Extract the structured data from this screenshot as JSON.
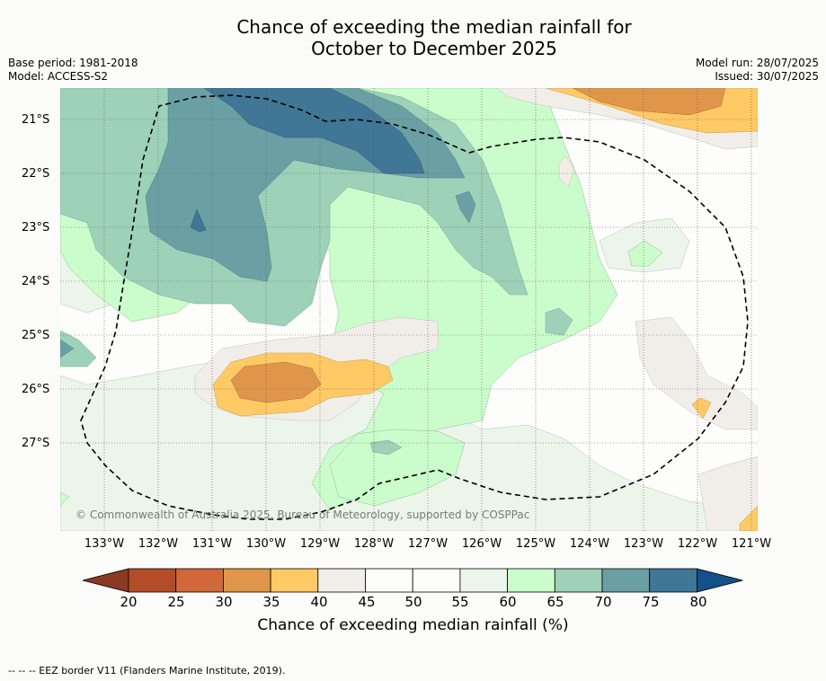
{
  "title_line1": "Chance of exceeding the median rainfall for",
  "title_line2": "October to December 2025",
  "base_period": "Base period: 1981-2018",
  "model": "Model: ACCESS-S2",
  "model_run": "Model run: 28/07/2025",
  "issued": "Issued: 30/07/2025",
  "copyright": "© Commonwealth of Australia 2025, Bureau of Meteorology, supported by COSPPac",
  "lat_labels": [
    "21°S",
    "22°S",
    "23°S",
    "24°S",
    "25°S",
    "26°S",
    "27°S"
  ],
  "lon_labels": [
    "133°W",
    "132°W",
    "131°W",
    "130°W",
    "129°W",
    "128°W",
    "127°W",
    "126°W",
    "125°W",
    "124°W",
    "123°W",
    "122°W",
    "121°W"
  ],
  "colorbar": {
    "ticks": [
      "20",
      "25",
      "30",
      "35",
      "40",
      "45",
      "50",
      "55",
      "60",
      "65",
      "70",
      "75",
      "80"
    ],
    "label": "Chance of exceeding median rainfall (%)",
    "colors": [
      "#8a3a22",
      "#b34d28",
      "#d0683a",
      "#e0964a",
      "#ffc965",
      "#f1ede8",
      "#fdfdfb",
      "#fdfdfb",
      "#ecf5ea",
      "#cbfccb",
      "#9dd1b8",
      "#6aa0a4",
      "#407696",
      "#14508a"
    ]
  },
  "footnote": "--  --  -- EEZ border V11 (Flanders Marine Institute, 2019)."
}
